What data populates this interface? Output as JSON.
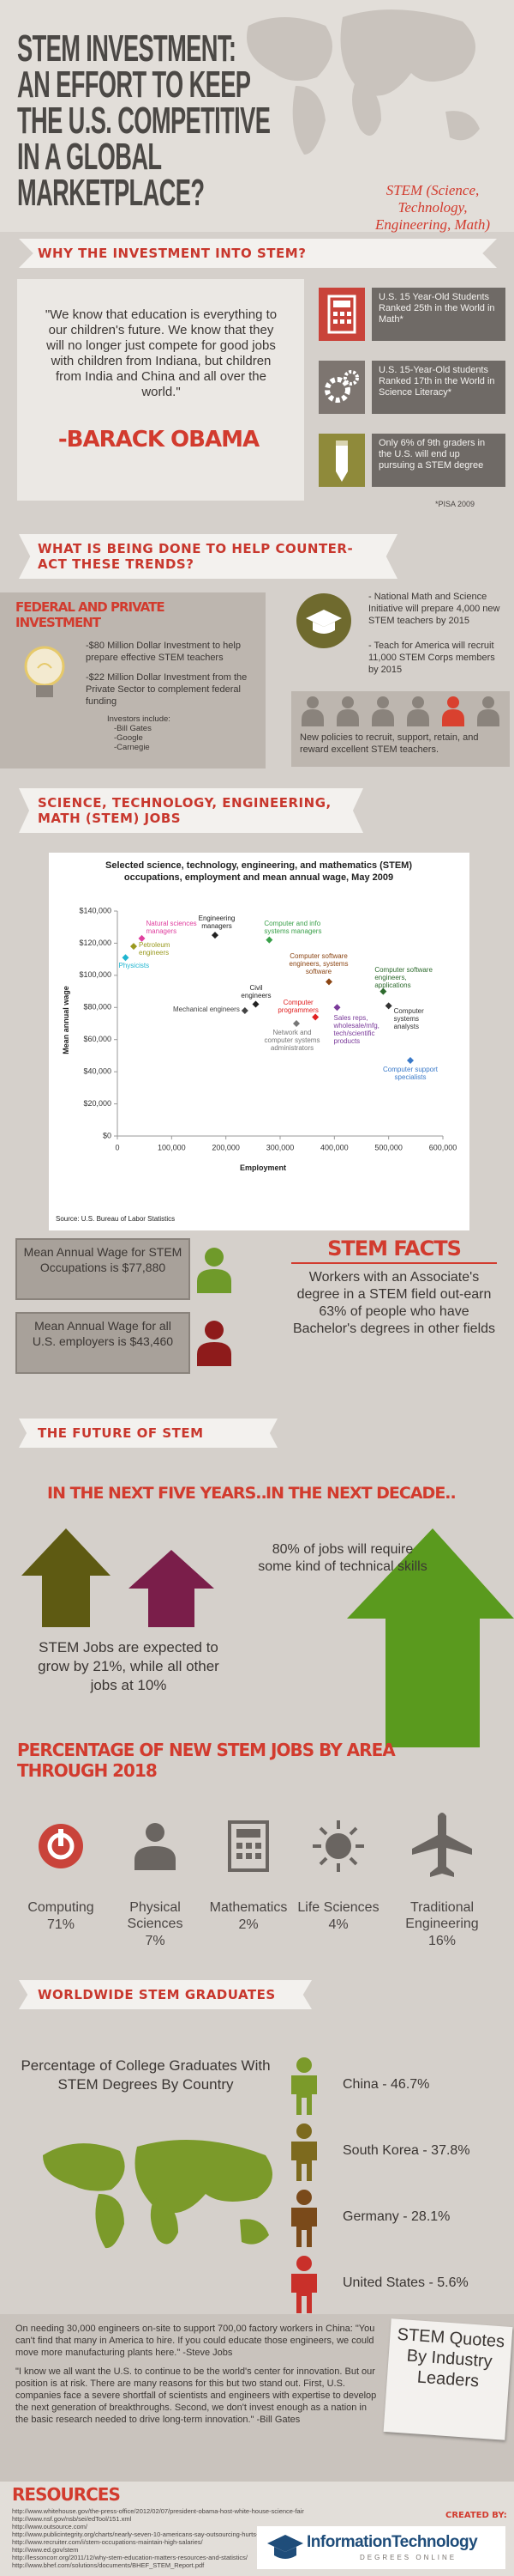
{
  "header": {
    "title_lines": [
      "STEM INVESTMENT:",
      "AN EFFORT TO KEEP",
      "THE U.S. COMPETITIVE",
      "IN A GLOBAL",
      "MARKETPLACE?"
    ],
    "subtitle": "STEM (Science, Technology, Engineering, Math)"
  },
  "why": {
    "heading": "WHY THE INVESTMENT INTO STEM?",
    "quote": "\"We know that education is everything to our children's future. We know that they will no longer just compete for good jobs with children from Indiana, but children from India and China and all over the world.\"",
    "author": "-BARACK OBAMA",
    "facts": [
      "U.S. 15 Year-Old Students Ranked 25th in the World in Math*",
      "U.S. 15-Year-Old students Ranked 17th in the World in Science Literacy*",
      "Only 6% of 9th graders in the U.S. will end up pursuing a STEM degree"
    ],
    "footnote": "*PISA 2009"
  },
  "counteract": {
    "heading": "WHAT IS BEING DONE TO HELP COUNTER-ACT THESE TRENDS?",
    "federal_title": "FEDERAL AND PRIVATE INVESTMENT",
    "federal_items": [
      "-$80 Million Dollar Investment to help prepare effective STEM teachers",
      "-$22 Million Dollar Investment from the Private Sector to complement federal funding"
    ],
    "investors_title": "Investors include:",
    "investors": [
      "-Bill Gates",
      "-Google",
      "-Carnegie"
    ],
    "programs": [
      "- National Math and Science Initiative will prepare 4,000 new STEM teachers by 2015",
      "- Teach for America will recruit 11,000 STEM Corps members by 2015"
    ],
    "policy": "New policies to recruit, support, retain, and reward excellent STEM teachers."
  },
  "jobs": {
    "heading": "SCIENCE, TECHNOLOGY, ENGINEERING, MATH (STEM) JOBS",
    "stem_wage": "Mean Annual Wage for STEM Occupations is $77,880",
    "all_wage": "Mean Annual Wage for all U.S. employers is $43,460",
    "facts_title": "STEM FACTS",
    "facts_text": "Workers with an Associate's degree in a STEM field out-earn 63% of people who have Bachelor's degrees in other fields"
  },
  "chart_data": {
    "type": "scatter",
    "title": "Selected science, technology, engineering, and mathematics (STEM) occupations, employment and mean annual wage, May 2009",
    "x_label": "Employment",
    "y_label": "Mean annual wage",
    "source": "Source: U.S. Bureau of Labor Statistics",
    "labels": [
      "Natural sciences managers",
      "Petroleum engineers",
      "Physicists",
      "Engineering managers",
      "Computer and info systems managers",
      "Computer software engineers, systems software",
      "Computer software engineers, applications",
      "Computer systems analysts",
      "Computer support specialists",
      "Civil engineers",
      "Mechanical engineers",
      "Computer programmers",
      "Network and computer systems administrators",
      "Sales reps, wholesale/mfg, tech/scientific products"
    ],
    "x": [
      45000,
      30000,
      15000,
      180000,
      280000,
      390000,
      490000,
      500000,
      540000,
      255000,
      235000,
      365000,
      330000,
      405000
    ],
    "values": [
      123000,
      118000,
      111000,
      125000,
      122000,
      96000,
      90000,
      81000,
      47000,
      82000,
      78000,
      74000,
      70000,
      80000
    ],
    "colors": [
      "#e0409f",
      "#9a9a20",
      "#1fb5d0",
      "#222222",
      "#3aa04a",
      "#8b4513",
      "#2e6b2e",
      "#333333",
      "#3b7ac9",
      "#222222",
      "#444444",
      "#e02020",
      "#777777",
      "#7a3a9a"
    ],
    "xlim": [
      0,
      600000
    ],
    "xticks": [
      0,
      {
        "value": 100000,
        "label": "100,000"
      },
      {
        "value": 200000,
        "label": "200,000"
      },
      {
        "value": 300000,
        "label": "300,000"
      },
      {
        "value": 400000,
        "label": "400,000"
      },
      {
        "value": 500000,
        "label": "500,000"
      },
      {
        "value": 600000,
        "label": "600,000"
      }
    ],
    "ylim": [
      0,
      140000
    ],
    "yticks": [
      {
        "value": 0,
        "label": "$0"
      },
      {
        "value": 20000,
        "label": "$20,000"
      },
      {
        "value": 40000,
        "label": "$40,000"
      },
      {
        "value": 60000,
        "label": "$60,000"
      },
      {
        "value": 80000,
        "label": "$80,000"
      },
      {
        "value": 100000,
        "label": "$100,000"
      },
      {
        "value": 120000,
        "label": "$120,000"
      },
      {
        "value": 140000,
        "label": "$140,000"
      }
    ],
    "grid": false
  },
  "future": {
    "heading": "THE FUTURE OF STEM",
    "five_years": "IN THE NEXT FIVE YEARS..",
    "decade": "IN THE NEXT DECADE..",
    "five_years_text": "STEM Jobs are expected to grow by 21%, while all other jobs at 10%",
    "decade_text": "80% of jobs will require some kind of technical skills"
  },
  "jobs_by_area": {
    "title": "PERCENTAGE OF NEW STEM JOBS BY AREA THROUGH 2018",
    "areas": [
      {
        "name": "Computing",
        "share": "71%"
      },
      {
        "name": "Physical Sciences",
        "share": "7%"
      },
      {
        "name": "Mathematics",
        "share": "2%"
      },
      {
        "name": "Life Sciences",
        "share": "4%"
      },
      {
        "name": "Traditional Engineering",
        "share": "16%"
      }
    ]
  },
  "graduates": {
    "heading": "WORLDWIDE STEM GRADUATES",
    "subtitle": "Percentage of College Graduates With STEM Degrees By Country",
    "countries": [
      "China - 46.7%",
      "South Korea - 37.8%",
      "Germany - 28.1%",
      "United States - 5.6%"
    ]
  },
  "quotes": {
    "title": "STEM Quotes By Industry Leaders",
    "paragraphs": [
      "On needing 30,000 engineers on-site to support 700,00 factory workers in China: \"You can't find that many in America to hire. If you could educate those engineers, we could move more manufacturing plants here.\" -Steve Jobs",
      "\"I know we all want the U.S. to continue to be the world's center for innovation. But our position is at risk. There are many reasons for this but two stand out. First, U.S. companies face a severe shortfall of scientists and engineers with expertise to develop the next generation of breakthroughs. Second, we don't invest enough as a nation in the basic research needed to drive long-term innovation.\" -Bill Gates"
    ]
  },
  "resources": {
    "title": "RESOURCES",
    "links": [
      "http://www.whitehouse.gov/the-press-office/2012/02/07/president-obama-host-white-house-science-fair",
      "http://www.nsf.gov/nsb/sei/edTool/151.xml",
      "http://www.outsource.com/",
      "http://www.publicintegrity.org/charts/nearly-seven-10-americans-say-outsourcing-hurts-us-economy",
      "http://www.recruiter.com/i/stem-occupations-maintain-high-salaries/",
      "http://www.ed.gov/stem",
      "http://lessoncorr.org/2011/12/why-stem-education-matters-resources-and-statistics/",
      "http://www.bhef.com/solutions/documents/BHEF_STEM_Report.pdf"
    ],
    "credit": "CREATED BY:",
    "logo": "InformationTechnology",
    "logo_sub": "DEGREES ONLINE"
  }
}
